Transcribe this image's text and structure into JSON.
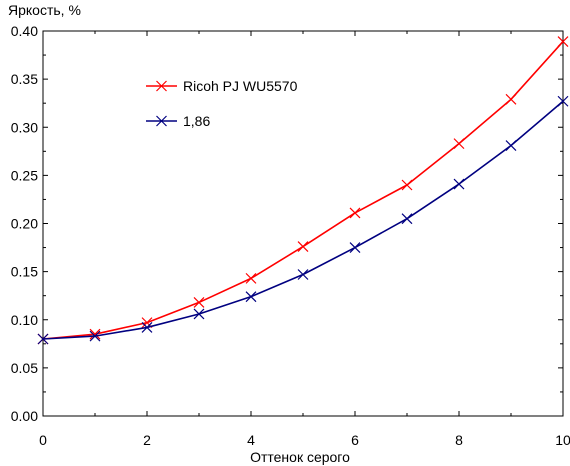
{
  "chart_data": {
    "type": "line",
    "ylabel": "Яркость, %",
    "xlabel": "Оттенок серого",
    "xlim": [
      0,
      10
    ],
    "ylim": [
      0.0,
      0.4
    ],
    "x_ticks": [
      "0",
      "2",
      "4",
      "6",
      "8",
      "10"
    ],
    "y_ticks": [
      "0.00",
      "0.05",
      "0.10",
      "0.15",
      "0.20",
      "0.25",
      "0.30",
      "0.35",
      "0.40"
    ],
    "grid": false,
    "legend_position": "upper-left",
    "x": [
      0,
      1,
      2,
      3,
      4,
      5,
      6,
      7,
      8,
      9,
      10
    ],
    "series": [
      {
        "name": "Ricoh PJ WU5570",
        "color": "#ff0000",
        "marker": "x",
        "values": [
          0.08,
          0.085,
          0.097,
          0.118,
          0.143,
          0.176,
          0.211,
          0.24,
          0.283,
          0.329,
          0.389
        ]
      },
      {
        "name": "1,86",
        "color": "#000080",
        "marker": "x",
        "values": [
          0.08,
          0.083,
          0.092,
          0.106,
          0.124,
          0.147,
          0.175,
          0.205,
          0.241,
          0.281,
          0.327
        ]
      }
    ]
  }
}
